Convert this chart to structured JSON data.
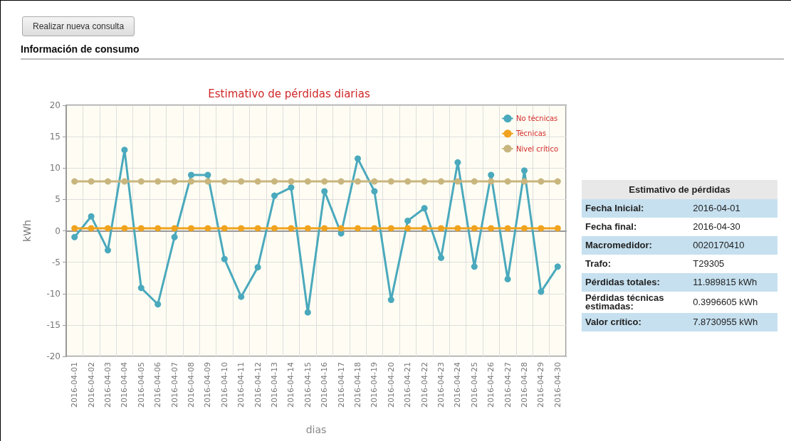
{
  "chart_data": [
    {
      "type": "other",
      "title": "Información de consumo",
      "annotations": [
        "Realizar nueva consulta"
      ]
    },
    {
      "type": "line",
      "title": "Estimativo de pérdidas diarias",
      "xlabel": "dias",
      "ylabel": "kWh",
      "categories": [
        "2016-04-01",
        "2016-04-02",
        "2016-04-03",
        "2016-04-04",
        "2016-04-05",
        "2016-04-06",
        "2016-04-07",
        "2016-04-08",
        "2016-04-09",
        "2016-04-10",
        "2016-04-11",
        "2016-04-12",
        "2016-04-13",
        "2016-04-14",
        "2016-04-15",
        "2016-04-16",
        "2016-04-17",
        "2016-04-18",
        "2016-04-19",
        "2016-04-20",
        "2016-04-21",
        "2016-04-22",
        "2016-04-23",
        "2016-04-24",
        "2016-04-25",
        "2016-04-26",
        "2016-04-27",
        "2016-04-28",
        "2016-04-29",
        "2016-04-30"
      ],
      "series": [
        {
          "name": "No técnicas",
          "color": "#4aa9bd",
          "values": [
            -1.0,
            2.3,
            -3.1,
            12.9,
            -9.1,
            -11.7,
            -1.0,
            8.9,
            8.9,
            -4.5,
            -10.5,
            -5.8,
            5.6,
            6.9,
            -13.0,
            6.3,
            -0.4,
            11.5,
            6.3,
            -11.0,
            1.6,
            3.6,
            -4.3,
            10.9,
            -5.7,
            8.9,
            -7.7,
            9.6,
            -9.7,
            -5.7
          ]
        },
        {
          "name": "Técnicas",
          "color": "#f0a31e",
          "values": [
            0.4,
            0.4,
            0.4,
            0.4,
            0.4,
            0.4,
            0.4,
            0.4,
            0.4,
            0.4,
            0.4,
            0.4,
            0.4,
            0.4,
            0.4,
            0.4,
            0.4,
            0.4,
            0.4,
            0.4,
            0.4,
            0.4,
            0.4,
            0.4,
            0.4,
            0.4,
            0.4,
            0.4,
            0.4,
            0.4
          ]
        },
        {
          "name": "Nivel crítico",
          "color": "#c9b67f",
          "values": [
            7.87,
            7.87,
            7.87,
            7.87,
            7.87,
            7.87,
            7.87,
            7.87,
            7.87,
            7.87,
            7.87,
            7.87,
            7.87,
            7.87,
            7.87,
            7.87,
            7.87,
            7.87,
            7.87,
            7.87,
            7.87,
            7.87,
            7.87,
            7.87,
            7.87,
            7.87,
            7.87,
            7.87,
            7.87,
            7.87
          ]
        }
      ],
      "ylim": [
        -20,
        20
      ],
      "yticks": [
        -20,
        -15,
        -10,
        -5,
        0,
        5,
        10,
        15,
        20
      ],
      "grid": true,
      "legend": "top right",
      "marker": "circle",
      "line_style": "solid"
    },
    {
      "type": "other",
      "title": "Estimativo de pérdidas",
      "annotations": [
        "Fecha Inicial:",
        "2016-04-01",
        "Fecha final:",
        "2016-04-30",
        "Macromedidor:",
        "0020170410",
        "Trafo:",
        "T29305",
        "Pérdidas totales:",
        "11.989815 kWh",
        "Pérdidas técnicas estimadas:",
        "0.3996605 kWh",
        "Valor crítico:",
        "7.8730955 kWh"
      ]
    }
  ]
}
